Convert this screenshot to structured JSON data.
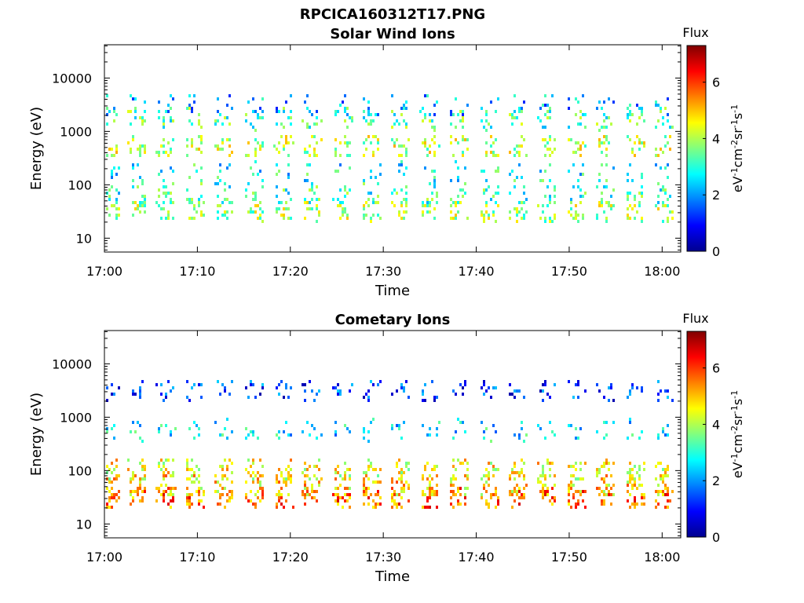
{
  "figure_title": "RPCICA160312T17.PNG",
  "colormap": [
    "#00008f",
    "#0000ff",
    "#0080ff",
    "#00ffff",
    "#80ff80",
    "#ffff00",
    "#ff8000",
    "#ff0000",
    "#800000"
  ],
  "chart_data": [
    {
      "type": "heatmap",
      "title": "Solar Wind Ions",
      "xlabel": "Time",
      "ylabel": "Energy (eV)",
      "x_ticks": [
        "17:00",
        "17:10",
        "17:20",
        "17:30",
        "17:40",
        "17:50",
        "18:00"
      ],
      "x_tick_minutes": [
        0,
        10,
        20,
        30,
        40,
        50,
        60
      ],
      "xlim_minutes": [
        0,
        62
      ],
      "y_scale": "log",
      "ylim": [
        5.5,
        42000
      ],
      "y_ticks": [
        10,
        100,
        1000,
        10000
      ],
      "y_tick_labels": [
        "10",
        "100",
        "1000",
        "10000"
      ],
      "colorbar": {
        "title": "Flux",
        "label": "eV-1cm-2sr-1s-1",
        "range": [
          0,
          7.3
        ],
        "ticks": [
          0,
          2,
          4,
          6
        ],
        "tick_labels": [
          "0",
          "2",
          "4",
          "6"
        ]
      },
      "bursts_minutes": [
        0.5,
        3.4,
        6.5,
        9.6,
        12.8,
        16.0,
        19.2,
        22.2,
        25.5,
        28.6,
        31.7,
        34.9,
        38.0,
        41.3,
        44.3,
        47.5,
        50.7,
        53.8,
        57.0,
        60.0
      ],
      "bands": [
        {
          "energy": 35,
          "flux": 3.9,
          "density": 0.75
        },
        {
          "energy": 70,
          "flux": 3.1,
          "density": 0.55
        },
        {
          "energy": 180,
          "flux": 2.8,
          "density": 0.35
        },
        {
          "energy": 550,
          "flux": 4.1,
          "density": 0.8
        },
        {
          "energy": 1800,
          "flux": 3.3,
          "density": 0.55
        },
        {
          "energy": 3400,
          "flux": 2.2,
          "density": 0.35
        }
      ]
    },
    {
      "type": "heatmap",
      "title": "Cometary Ions",
      "xlabel": "Time",
      "ylabel": "Energy (eV)",
      "x_ticks": [
        "17:00",
        "17:10",
        "17:20",
        "17:30",
        "17:40",
        "17:50",
        "18:00"
      ],
      "x_tick_minutes": [
        0,
        10,
        20,
        30,
        40,
        50,
        60
      ],
      "xlim_minutes": [
        0,
        62
      ],
      "y_scale": "log",
      "ylim": [
        5.5,
        42000
      ],
      "y_ticks": [
        10,
        100,
        1000,
        10000
      ],
      "y_tick_labels": [
        "10",
        "100",
        "1000",
        "10000"
      ],
      "colorbar": {
        "title": "Flux",
        "label": "eV-1cm-2sr-1s-1",
        "range": [
          0,
          7.3
        ],
        "ticks": [
          0,
          2,
          4,
          6
        ],
        "tick_labels": [
          "0",
          "2",
          "4",
          "6"
        ]
      },
      "bursts_minutes": [
        0.5,
        3.4,
        6.5,
        9.6,
        12.8,
        16.0,
        19.2,
        22.2,
        25.5,
        28.6,
        31.7,
        34.9,
        38.0,
        41.3,
        44.3,
        47.5,
        50.7,
        53.8,
        57.0,
        60.0
      ],
      "bands": [
        {
          "energy": 33,
          "flux": 5.6,
          "density": 0.95
        },
        {
          "energy": 55,
          "flux": 4.8,
          "density": 0.9
        },
        {
          "energy": 110,
          "flux": 4.5,
          "density": 0.85
        },
        {
          "energy": 600,
          "flux": 2.6,
          "density": 0.4
        },
        {
          "energy": 3300,
          "flux": 1.3,
          "density": 0.5
        }
      ]
    }
  ]
}
